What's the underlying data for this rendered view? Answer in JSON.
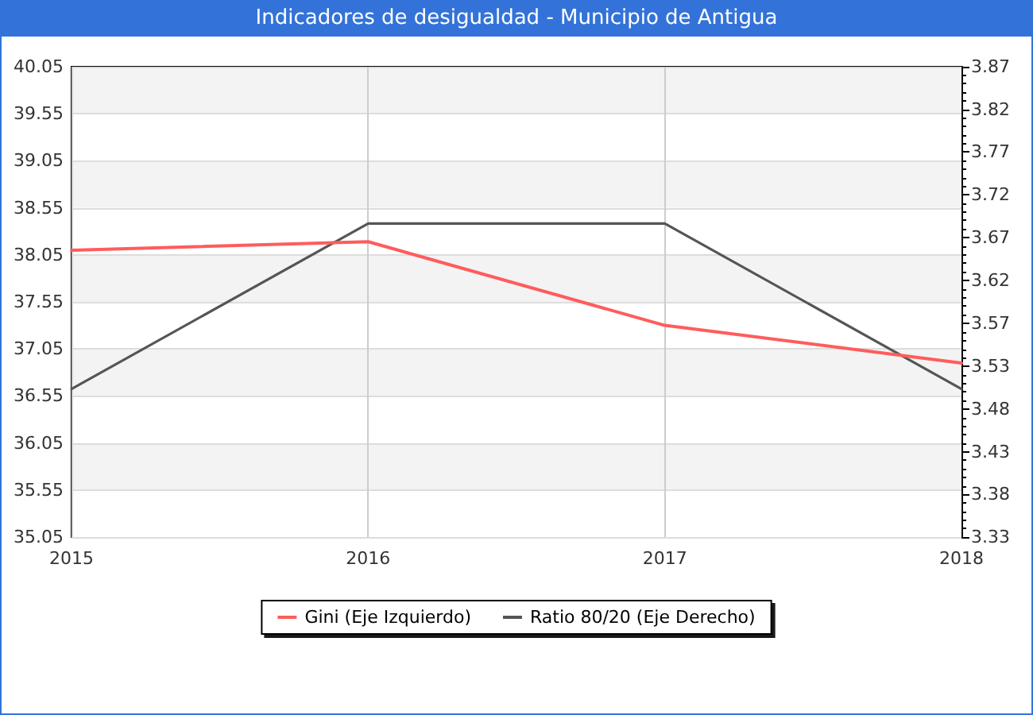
{
  "chart_data": {
    "type": "line",
    "title": "Indicadores de desigualdad - Municipio de Antigua",
    "x": [
      2015,
      2016,
      2017,
      2018
    ],
    "xlim": [
      2015,
      2018
    ],
    "xticks": [
      2015,
      2016,
      2017,
      2018
    ],
    "ylim": [
      35.05,
      40.05
    ],
    "yticks": [
      35.05,
      35.55,
      36.05,
      36.55,
      37.05,
      37.55,
      38.05,
      38.55,
      39.05,
      39.55,
      40.05
    ],
    "y2lim": [
      3.33,
      3.87
    ],
    "y2ticks": [
      3.33,
      {
        "value": 3.379,
        "label": "3.38"
      },
      {
        "value": 3.428,
        "label": "3.43"
      },
      {
        "value": 3.477,
        "label": "3.48"
      },
      {
        "value": 3.526,
        "label": "3.53"
      },
      {
        "value": 3.575,
        "label": "3.57"
      },
      {
        "value": 3.625,
        "label": "3.62"
      },
      {
        "value": 3.674,
        "label": "3.67"
      },
      {
        "value": 3.723,
        "label": "3.72"
      },
      {
        "value": 3.772,
        "label": "3.77"
      },
      {
        "value": 3.821,
        "label": "3.82"
      },
      3.87
    ],
    "series": [
      {
        "name": "Gini (Eje Izquierdo)",
        "color": "#ff5c5c",
        "values": [
          38.1,
          38.19,
          37.3,
          36.9
        ]
      },
      {
        "name": "Ratio 80/20 (Eje Derecho)",
        "color": "#555555",
        "axis": "y2",
        "values": [
          3.5,
          3.69,
          3.69,
          3.5
        ]
      }
    ],
    "grid": true,
    "legend": "bottom",
    "marker": "none",
    "line_style": "solid"
  }
}
